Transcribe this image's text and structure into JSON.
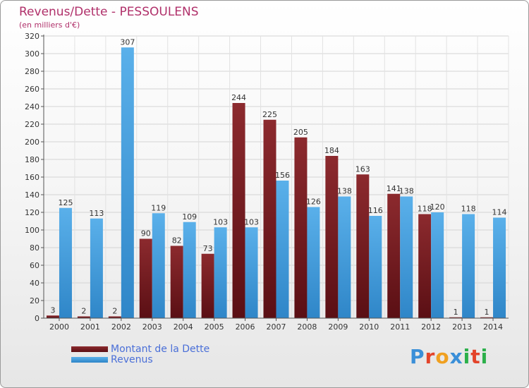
{
  "chart_data": {
    "type": "bar",
    "title": "Revenus/Dette - PESSOULENS",
    "subtitle": "(en milliers d'€)",
    "categories": [
      "2000",
      "2001",
      "2002",
      "2003",
      "2004",
      "2005",
      "2006",
      "2007",
      "2008",
      "2009",
      "2010",
      "2011",
      "2012",
      "2013",
      "2014"
    ],
    "series": [
      {
        "name": "Montant de la Dette",
        "color": "#7a1e22",
        "values": [
          3,
          2,
          2,
          90,
          82,
          73,
          244,
          225,
          205,
          184,
          163,
          141,
          118,
          1,
          1
        ]
      },
      {
        "name": "Revenus",
        "color": "#4aa3e0",
        "values": [
          125,
          113,
          307,
          119,
          109,
          103,
          103,
          156,
          126,
          138,
          116,
          138,
          120,
          118,
          114
        ]
      }
    ],
    "ylim": [
      0,
      320
    ],
    "yticks": [
      0,
      20,
      40,
      60,
      80,
      100,
      120,
      140,
      160,
      180,
      200,
      220,
      240,
      260,
      280,
      300,
      320
    ],
    "grid": true,
    "legend_position": "bottom-left"
  },
  "logo": {
    "text": "Proxiti",
    "colors": [
      "#3a8fd8",
      "#e3442a",
      "#f0a020",
      "#3a8fd8",
      "#2bb04a",
      "#e3442a",
      "#2bb04a"
    ]
  }
}
